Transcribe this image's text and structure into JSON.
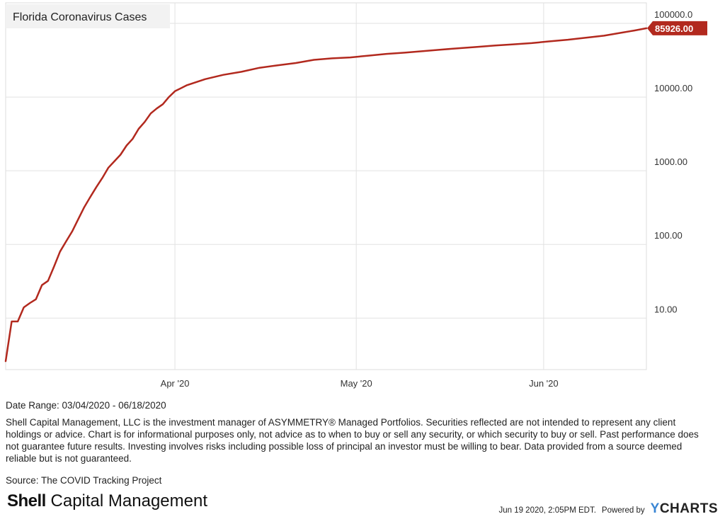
{
  "chart_data": {
    "type": "line",
    "title": "Florida Coronavirus Cases",
    "yscale": "log",
    "ylim": [
      2,
      190000
    ],
    "y_ticks": [
      {
        "value": 10,
        "label": "10.00"
      },
      {
        "value": 100,
        "label": "100.00"
      },
      {
        "value": 1000,
        "label": "1000.00"
      },
      {
        "value": 10000,
        "label": "10000.00"
      },
      {
        "value": 100000,
        "label": "100000.0"
      }
    ],
    "xlim": [
      "2020-03-04",
      "2020-06-18"
    ],
    "x_ticks": [
      {
        "value": "2020-04-01",
        "label": "Apr '20"
      },
      {
        "value": "2020-05-01",
        "label": "May '20"
      },
      {
        "value": "2020-06-01",
        "label": "Jun '20"
      }
    ],
    "grid": true,
    "series": [
      {
        "color": "#b2291e",
        "last_value_label": "85926.00",
        "x": [
          "2020-03-04",
          "2020-03-05",
          "2020-03-06",
          "2020-03-07",
          "2020-03-08",
          "2020-03-09",
          "2020-03-10",
          "2020-03-11",
          "2020-03-12",
          "2020-03-13",
          "2020-03-14",
          "2020-03-15",
          "2020-03-16",
          "2020-03-17",
          "2020-03-18",
          "2020-03-19",
          "2020-03-20",
          "2020-03-21",
          "2020-03-22",
          "2020-03-23",
          "2020-03-24",
          "2020-03-25",
          "2020-03-26",
          "2020-03-27",
          "2020-03-28",
          "2020-03-29",
          "2020-03-30",
          "2020-03-31",
          "2020-04-01",
          "2020-04-03",
          "2020-04-06",
          "2020-04-09",
          "2020-04-12",
          "2020-04-15",
          "2020-04-18",
          "2020-04-21",
          "2020-04-24",
          "2020-04-27",
          "2020-04-30",
          "2020-05-03",
          "2020-05-06",
          "2020-05-09",
          "2020-05-12",
          "2020-05-15",
          "2020-05-18",
          "2020-05-21",
          "2020-05-24",
          "2020-05-27",
          "2020-05-30",
          "2020-06-02",
          "2020-06-05",
          "2020-06-08",
          "2020-06-11",
          "2020-06-14",
          "2020-06-16",
          "2020-06-18"
        ],
        "y": [
          2.6,
          9,
          9,
          14,
          16,
          18,
          28,
          32,
          50,
          80,
          110,
          150,
          220,
          320,
          440,
          600,
          800,
          1100,
          1350,
          1650,
          2200,
          2700,
          3700,
          4600,
          6000,
          7000,
          8000,
          10000,
          12000,
          14500,
          17500,
          20000,
          22000,
          25000,
          27000,
          29000,
          32000,
          33500,
          34500,
          36500,
          38500,
          40000,
          42000,
          44000,
          46000,
          48000,
          50000,
          52000,
          54000,
          57000,
          60000,
          64000,
          68000,
          75000,
          80000,
          85926
        ]
      }
    ]
  },
  "footer": {
    "date_range": "Date Range: 03/04/2020 - 06/18/2020",
    "disclaimer": "Shell Capital Management, LLC is the investment manager of ASYMMETRY® Managed Portfolios. Securities reflected are not intended to represent any client holdings or advice. Chart is for informational purposes only, not advice as to when to buy or sell any security, or which security to buy or sell. Past performance does not guarantee future results. Investing involves risks including possible loss of principal an investor must be willing to bear. Data provided from a source deemed reliable but is not guaranteed.",
    "source": "Source: The COVID Tracking Project",
    "brand_bold": "Shell",
    "brand_rest": " Capital Management",
    "timestamp": "Jun 19 2020, 2:05PM EDT.",
    "powered_by": "Powered by",
    "ycharts_y": "Y",
    "ycharts_rest": "CHARTS"
  }
}
